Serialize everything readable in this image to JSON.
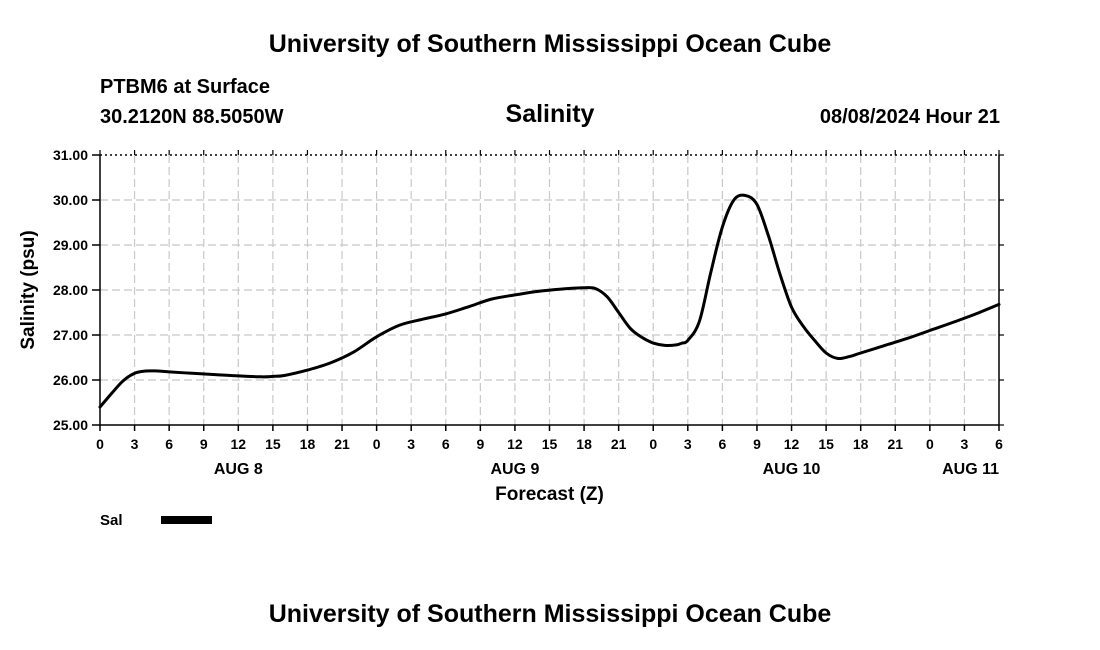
{
  "header": {
    "title": "University of Southern Mississippi Ocean Cube",
    "station": "PTBM6 at Surface",
    "coords": "30.2120N  88.5050W",
    "datetime": "08/08/2024 Hour 21"
  },
  "footer": {
    "title": "University of Southern Mississippi Ocean Cube"
  },
  "chart_data": {
    "type": "line",
    "title": "Salinity",
    "xlabel": "Forecast (Z)",
    "ylabel": "Salinity (psu)",
    "xlim": [
      0,
      78
    ],
    "ylim": [
      25.0,
      31.0
    ],
    "y_ticks": [
      "25.00",
      "26.00",
      "27.00",
      "28.00",
      "29.00",
      "30.00",
      "31.00"
    ],
    "x_tick_labels": [
      "0",
      "3",
      "6",
      "9",
      "12",
      "15",
      "18",
      "21",
      "0",
      "3",
      "6",
      "9",
      "12",
      "15",
      "18",
      "21",
      "0",
      "3",
      "6",
      "9",
      "12",
      "15",
      "18",
      "21",
      "0",
      "3",
      "6"
    ],
    "date_labels": [
      {
        "label": "AUG 8",
        "hour": 12
      },
      {
        "label": "AUG 9",
        "hour": 36
      },
      {
        "label": "AUG 10",
        "hour": 60
      },
      {
        "label": "AUG 11",
        "hour": 78
      }
    ],
    "grid": true,
    "legend": [
      {
        "name": "Sal",
        "color": "#000000"
      }
    ],
    "series": [
      {
        "name": "Sal",
        "x": [
          0,
          1,
          2,
          3,
          4,
          5,
          6,
          8,
          10,
          12,
          14,
          15,
          16,
          18,
          20,
          22,
          24,
          26,
          28,
          30,
          32,
          34,
          36,
          38,
          40,
          42,
          43,
          44,
          45,
          46,
          47,
          48,
          49,
          50,
          50.5,
          51,
          52,
          53,
          54,
          55,
          56,
          57,
          58,
          59,
          60,
          61,
          62,
          63,
          64,
          65,
          66,
          68,
          70,
          72,
          74,
          76,
          78
        ],
        "y": [
          25.4,
          25.7,
          25.98,
          26.15,
          26.2,
          26.2,
          26.18,
          26.15,
          26.12,
          26.09,
          26.07,
          26.08,
          26.1,
          26.22,
          26.38,
          26.62,
          26.96,
          27.22,
          27.35,
          27.47,
          27.63,
          27.8,
          27.89,
          27.97,
          28.02,
          28.05,
          28.03,
          27.85,
          27.5,
          27.15,
          26.95,
          26.82,
          26.77,
          26.78,
          26.82,
          26.88,
          27.3,
          28.4,
          29.4,
          30.0,
          30.1,
          29.9,
          29.2,
          28.35,
          27.62,
          27.2,
          26.88,
          26.6,
          26.48,
          26.52,
          26.6,
          26.76,
          26.92,
          27.1,
          27.28,
          27.47,
          27.68
        ]
      }
    ]
  }
}
